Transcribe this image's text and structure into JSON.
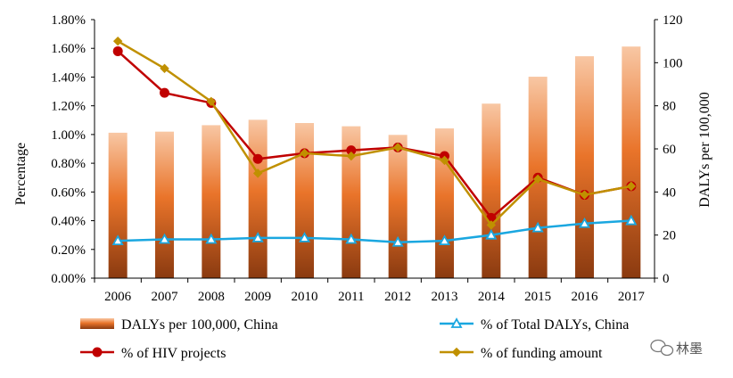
{
  "chart_data": {
    "type": "bar+line",
    "categories": [
      "2006",
      "2007",
      "2008",
      "2009",
      "2010",
      "2011",
      "2012",
      "2013",
      "2014",
      "2015",
      "2016",
      "2017"
    ],
    "bar_series": {
      "name": "DALYs per 100,000, China",
      "axis": "right",
      "values": [
        67.5,
        68,
        71,
        73.5,
        72,
        70.5,
        66.5,
        69.5,
        81,
        93.5,
        103,
        107.5
      ],
      "color_top": "#f8c7a4",
      "color_mid": "#e9742a",
      "color_bottom": "#8a3a10"
    },
    "line_series": [
      {
        "name": "% of Total DALYs, China",
        "axis": "left",
        "values": [
          0.0026,
          0.0027,
          0.0027,
          0.0028,
          0.0028,
          0.0027,
          0.0025,
          0.0026,
          0.003,
          0.0035,
          0.0038,
          0.004
        ],
        "color": "#1aa7e0",
        "marker": "triangle"
      },
      {
        "name": "% of HIV projects",
        "axis": "left",
        "values": [
          0.0158,
          0.0129,
          0.0122,
          0.0083,
          0.0087,
          0.0089,
          0.0091,
          0.0085,
          0.0042,
          0.007,
          0.0058,
          0.0064
        ],
        "color": "#c00000",
        "marker": "circle"
      },
      {
        "name": "% of funding amount",
        "axis": "left",
        "values": [
          0.0165,
          0.0146,
          0.0123,
          0.0073,
          0.0087,
          0.0085,
          0.0091,
          0.0082,
          0.0037,
          0.0069,
          0.0058,
          0.0064
        ],
        "color": "#c09000",
        "marker": "diamond"
      }
    ],
    "left_axis": {
      "title": "Percentage",
      "ylim": [
        0,
        0.018
      ],
      "ticks": [
        "0.00%",
        "0.20%",
        "0.40%",
        "0.60%",
        "0.80%",
        "1.00%",
        "1.20%",
        "1.40%",
        "1.60%",
        "1.80%"
      ]
    },
    "right_axis": {
      "title": "DALYs per 100,000",
      "ylim": [
        0,
        120
      ],
      "ticks": [
        "0",
        "20",
        "40",
        "60",
        "80",
        "100",
        "120"
      ]
    },
    "legend": {
      "placement": "bottom",
      "items": [
        "DALYs per 100,000, China",
        "% of Total DALYs, China",
        "% of HIV projects",
        "% of funding amount"
      ]
    }
  },
  "watermark": "林墨"
}
